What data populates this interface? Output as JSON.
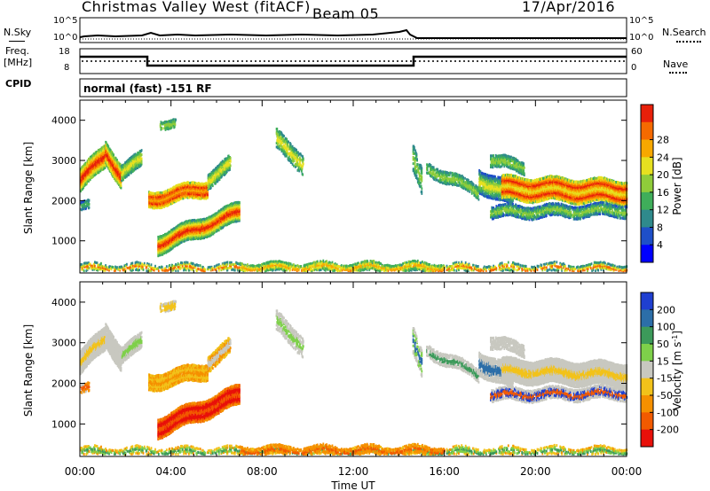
{
  "header": {
    "station": "Christmas Valley West (fitACF)",
    "beam": "Beam 05",
    "date": "17/Apr/2016"
  },
  "panels": {
    "nsky_label": "N.Sky",
    "nsearch_label": "N.Search",
    "freq_label_1": "Freq.",
    "freq_label_2": "[MHz]",
    "nave_label": "Nave",
    "cpid_label": "CPID",
    "cpid_value": "normal (fast) -151 RF",
    "noise_ticks_left": [
      "10^5",
      "10^0"
    ],
    "noise_ticks_right": [
      "10^5",
      "10^0"
    ],
    "freq_ticks_left": [
      "18",
      "8"
    ],
    "freq_ticks_right": [
      "60",
      "0"
    ]
  },
  "chart_data": [
    {
      "type": "heatmap",
      "title": "",
      "xlabel": "Time UT",
      "ylabel": "Slant Range [km]",
      "x_ticks": [
        "00:00",
        "04:00",
        "08:00",
        "12:00",
        "16:00",
        "20:00",
        "00:00"
      ],
      "xlim_hours": [
        0,
        24
      ],
      "y_ticks": [
        1000,
        2000,
        3000,
        4000
      ],
      "ylim": [
        200,
        4500
      ],
      "colorbar": {
        "label": "Power [dB]",
        "ticks": [
          4,
          8,
          12,
          16,
          20,
          24,
          28
        ],
        "colors": [
          "#0000ff",
          "#1e4fc8",
          "#2f8a8c",
          "#3fae5a",
          "#8fcc3a",
          "#e6e020",
          "#f7a800",
          "#f56a00",
          "#e8200a"
        ]
      }
    },
    {
      "type": "heatmap",
      "title": "",
      "xlabel": "Time UT",
      "ylabel": "Slant Range [km]",
      "x_ticks": [
        "00:00",
        "04:00",
        "08:00",
        "12:00",
        "16:00",
        "20:00",
        "00:00"
      ],
      "xlim_hours": [
        0,
        24
      ],
      "y_ticks": [
        1000,
        2000,
        3000,
        4000
      ],
      "ylim": [
        200,
        4500
      ],
      "colorbar": {
        "label": "Velocity [m s",
        "label_sup": "-1",
        "label_end": "]",
        "ticks": [
          "200",
          "100",
          "50",
          "15",
          "-15",
          "-50",
          "-100",
          "-200"
        ],
        "colors": [
          "#1f3fd0",
          "#2c6ea8",
          "#3c9a5a",
          "#7ed04a",
          "#c8c8c0",
          "#f2c21a",
          "#f59000",
          "#f25a00",
          "#e8100a"
        ]
      }
    }
  ],
  "time_axis_label": "Time UT"
}
